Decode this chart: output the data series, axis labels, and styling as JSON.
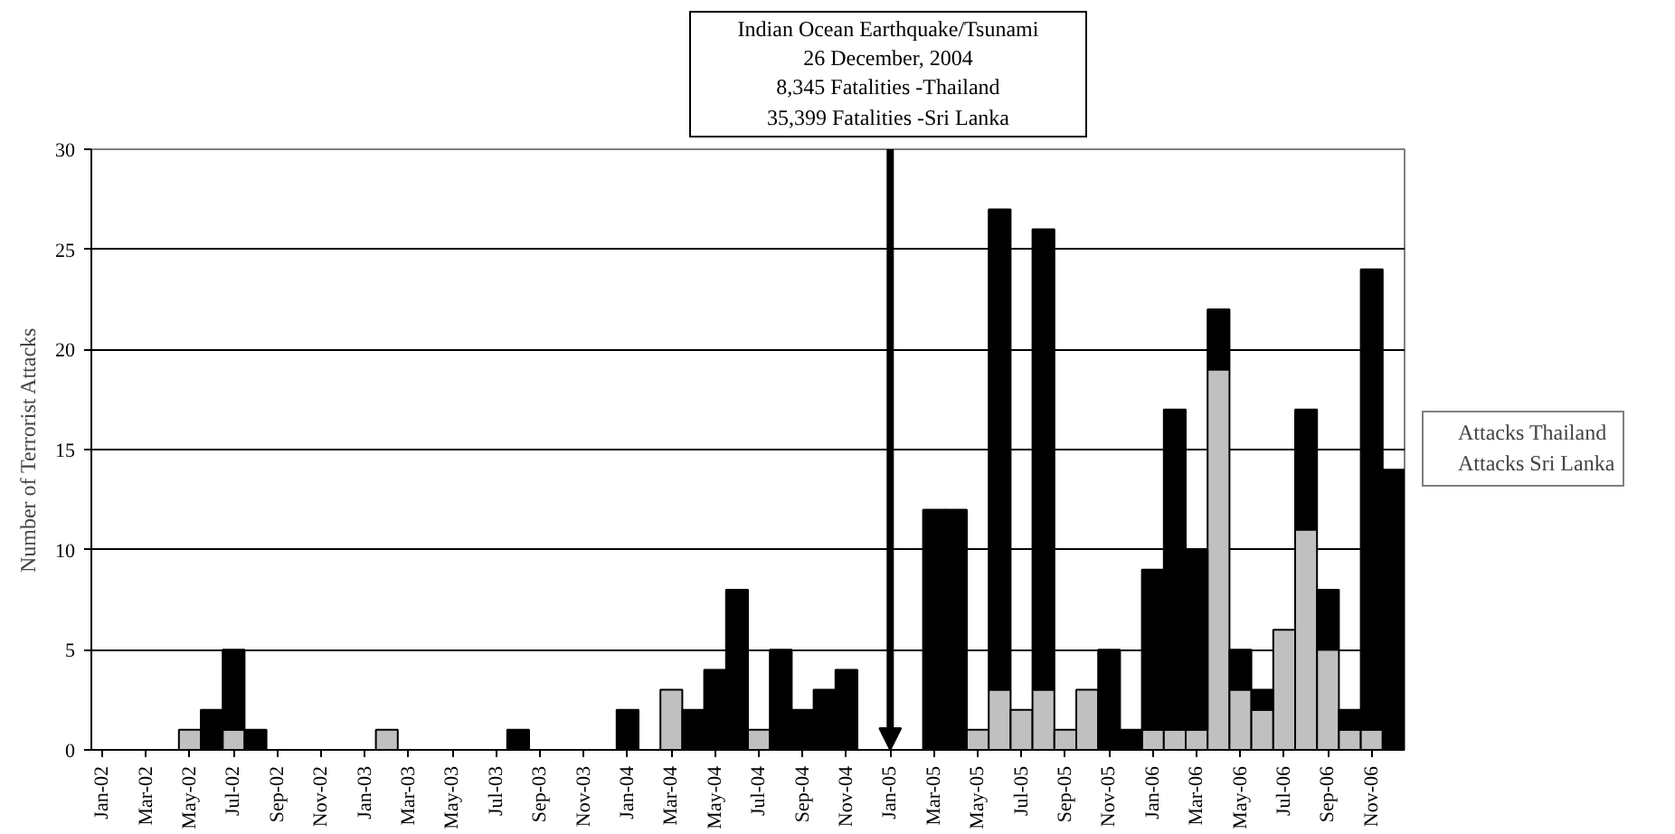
{
  "chart_data": {
    "type": "bar",
    "stacked": true,
    "ylabel": "Number of Terrorist Attacks",
    "categories": [
      "Jan-02",
      null,
      "Mar-02",
      null,
      "May-02",
      null,
      "Jul-02",
      null,
      "Sep-02",
      null,
      "Nov-02",
      null,
      "Jan-03",
      null,
      "Mar-03",
      null,
      "May-03",
      null,
      "Jul-03",
      null,
      "Sep-03",
      null,
      "Nov-03",
      null,
      "Jan-04",
      null,
      "Mar-04",
      null,
      "May-04",
      null,
      "Jul-04",
      null,
      "Sep-04",
      null,
      "Nov-04",
      null,
      "Jan-05",
      null,
      "Mar-05",
      null,
      "May-05",
      null,
      "Jul-05",
      null,
      "Sep-05",
      null,
      "Nov-05",
      null,
      "Jan-06",
      null,
      "Mar-06",
      null,
      "May-06",
      null,
      "Jul-06",
      null,
      "Sep-06",
      null,
      "Nov-06",
      null
    ],
    "series": [
      {
        "name": "Attacks Sri Lanka",
        "color": "#c0c0c0",
        "values": [
          0,
          0,
          0,
          0,
          1,
          0,
          1,
          0,
          0,
          0,
          0,
          0,
          0,
          1,
          0,
          0,
          0,
          0,
          0,
          0,
          0,
          0,
          0,
          0,
          0,
          0,
          3,
          0,
          0,
          0,
          1,
          0,
          0,
          0,
          0,
          0,
          0,
          0,
          0,
          0,
          1,
          3,
          2,
          3,
          1,
          3,
          0,
          0,
          1,
          1,
          1,
          19,
          3,
          2,
          6,
          11,
          5,
          1,
          1,
          0
        ]
      },
      {
        "name": "Attacks Thailand",
        "color": "#000000",
        "values": [
          0,
          0,
          0,
          0,
          0,
          2,
          4,
          1,
          0,
          0,
          0,
          0,
          0,
          0,
          0,
          0,
          0,
          0,
          0,
          1,
          0,
          0,
          0,
          0,
          2,
          0,
          0,
          2,
          4,
          8,
          0,
          5,
          2,
          3,
          4,
          0,
          0,
          0,
          12,
          12,
          0,
          24,
          0,
          23,
          0,
          0,
          5,
          1,
          8,
          16,
          9,
          3,
          2,
          1,
          0,
          6,
          3,
          1,
          23,
          14
        ]
      }
    ],
    "ylim": [
      0,
      30
    ],
    "yticks": [
      0,
      5,
      10,
      15,
      20,
      25,
      30
    ],
    "grid": "y",
    "legend": "right",
    "annotations": [
      {
        "text": "Indian Ocean Earthquake/Tsunami\n26 December, 2004\n8,345 Fatalities -Thailand\n35,399 Fatalities -Sri Lanka",
        "x": "Jan-05",
        "y": 0
      }
    ]
  }
}
